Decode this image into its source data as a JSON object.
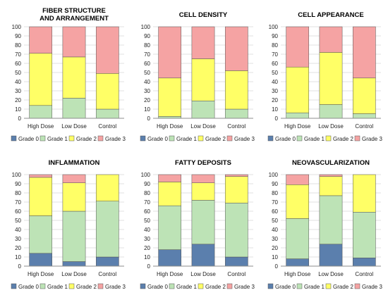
{
  "colors": {
    "grade0": "#5b7fad",
    "grade1": "#bde3b6",
    "grade2": "#ffff66",
    "grade3": "#f5a3a3",
    "grid": "#d9d9d9",
    "axis": "#8c8c8c",
    "outline": "#555555"
  },
  "chart_data": [
    {
      "type": "bar",
      "stacked": true,
      "title_lines": [
        "FIBER STRUCTURE",
        "AND ARRANGEMENT"
      ],
      "categories": [
        "High Dose",
        "Low Dose",
        "Control"
      ],
      "ylim": [
        0,
        100
      ],
      "yticks": [
        0,
        10,
        20,
        30,
        40,
        50,
        60,
        70,
        80,
        90,
        100
      ],
      "grid": true,
      "legend": "bottom",
      "series": [
        {
          "name": "Grade 0",
          "values": [
            0,
            0,
            0
          ]
        },
        {
          "name": "Grade 1",
          "values": [
            14,
            22,
            10
          ]
        },
        {
          "name": "Grade 2",
          "values": [
            57,
            45,
            39
          ]
        },
        {
          "name": "Grade 3",
          "values": [
            29,
            33,
            51
          ]
        }
      ]
    },
    {
      "type": "bar",
      "stacked": true,
      "title_lines": [
        "CELL DENSITY"
      ],
      "categories": [
        "High Dose",
        "Low Dose",
        "Control"
      ],
      "ylim": [
        0,
        100
      ],
      "yticks": [
        0,
        10,
        20,
        30,
        40,
        50,
        60,
        70,
        80,
        90,
        100
      ],
      "grid": true,
      "legend": "bottom",
      "series": [
        {
          "name": "Grade 0",
          "values": [
            0,
            0,
            0
          ]
        },
        {
          "name": "Grade 1",
          "values": [
            2,
            19,
            10
          ]
        },
        {
          "name": "Grade 2",
          "values": [
            42,
            46,
            42
          ]
        },
        {
          "name": "Grade 3",
          "values": [
            56,
            35,
            48
          ]
        }
      ]
    },
    {
      "type": "bar",
      "stacked": true,
      "title_lines": [
        "CELL APPEARANCE"
      ],
      "categories": [
        "High Dose",
        "Low Dose",
        "Control"
      ],
      "ylim": [
        0,
        100
      ],
      "yticks": [
        0,
        10,
        20,
        30,
        40,
        50,
        60,
        70,
        80,
        90,
        100
      ],
      "grid": true,
      "legend": "bottom",
      "series": [
        {
          "name": "Grade 0",
          "values": [
            0,
            0,
            0
          ]
        },
        {
          "name": "Grade 1",
          "values": [
            6,
            15,
            5
          ]
        },
        {
          "name": "Grade 2",
          "values": [
            50,
            57,
            39
          ]
        },
        {
          "name": "Grade 3",
          "values": [
            44,
            28,
            56
          ]
        }
      ]
    },
    {
      "type": "bar",
      "stacked": true,
      "title_lines": [
        "INFLAMMATION"
      ],
      "categories": [
        "High Dose",
        "Low Dose",
        "Control"
      ],
      "ylim": [
        0,
        100
      ],
      "yticks": [
        0,
        10,
        20,
        30,
        40,
        50,
        60,
        70,
        80,
        90,
        100
      ],
      "grid": true,
      "legend": "bottom",
      "series": [
        {
          "name": "Grade 0",
          "values": [
            14,
            5,
            10
          ]
        },
        {
          "name": "Grade 1",
          "values": [
            41,
            55,
            61
          ]
        },
        {
          "name": "Grade 2",
          "values": [
            42,
            31,
            29
          ]
        },
        {
          "name": "Grade 3",
          "values": [
            3,
            9,
            0
          ]
        }
      ]
    },
    {
      "type": "bar",
      "stacked": true,
      "title_lines": [
        "FATTY DEPOSITS"
      ],
      "categories": [
        "High Dose",
        "Low Dose",
        "Control"
      ],
      "ylim": [
        0,
        100
      ],
      "yticks": [
        0,
        10,
        20,
        30,
        40,
        50,
        60,
        70,
        80,
        90,
        100
      ],
      "grid": true,
      "legend": "bottom",
      "series": [
        {
          "name": "Grade 0",
          "values": [
            18,
            24,
            10
          ]
        },
        {
          "name": "Grade 1",
          "values": [
            48,
            48,
            59
          ]
        },
        {
          "name": "Grade 2",
          "values": [
            26,
            19,
            29
          ]
        },
        {
          "name": "Grade 3",
          "values": [
            8,
            9,
            2
          ]
        }
      ]
    },
    {
      "type": "bar",
      "stacked": true,
      "title_lines": [
        "NEOVASCULARIZATION"
      ],
      "categories": [
        "High Dose",
        "Low Dose",
        "Control"
      ],
      "ylim": [
        0,
        100
      ],
      "yticks": [
        0,
        10,
        20,
        30,
        40,
        50,
        60,
        70,
        80,
        90,
        100
      ],
      "grid": true,
      "legend": "bottom",
      "series": [
        {
          "name": "Grade 0",
          "values": [
            8,
            24,
            9
          ]
        },
        {
          "name": "Grade 1",
          "values": [
            44,
            53,
            50
          ]
        },
        {
          "name": "Grade 2",
          "values": [
            37,
            21,
            41
          ]
        },
        {
          "name": "Grade 3",
          "values": [
            11,
            2,
            0
          ]
        }
      ]
    }
  ]
}
